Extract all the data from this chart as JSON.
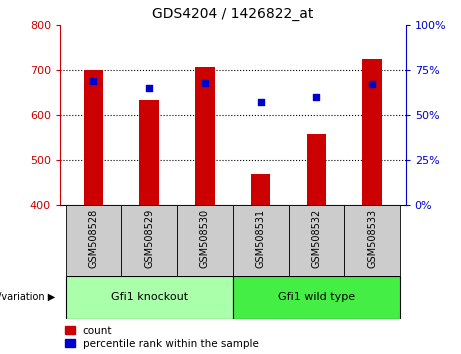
{
  "title": "GDS4204 / 1426822_at",
  "samples": [
    "GSM508528",
    "GSM508529",
    "GSM508530",
    "GSM508531",
    "GSM508532",
    "GSM508533"
  ],
  "count_values": [
    700,
    633,
    706,
    469,
    557,
    724
  ],
  "percentile_values": [
    69,
    65,
    68,
    57,
    60,
    67
  ],
  "count_baseline": 400,
  "count_ylim": [
    400,
    800
  ],
  "count_yticks": [
    400,
    500,
    600,
    700,
    800
  ],
  "percentile_ylim": [
    0,
    100
  ],
  "percentile_yticks": [
    0,
    25,
    50,
    75,
    100
  ],
  "bar_color": "#cc0000",
  "dot_color": "#0000cc",
  "bar_width": 0.35,
  "groups": [
    {
      "label": "Gfi1 knockout",
      "start": 0,
      "end": 3,
      "color": "#aaffaa"
    },
    {
      "label": "Gfi1 wild type",
      "start": 3,
      "end": 6,
      "color": "#44ee44"
    }
  ],
  "group_label": "genotype/variation",
  "legend_count_label": "count",
  "legend_percentile_label": "percentile rank within the sample",
  "background_color": "#ffffff",
  "plot_bg_color": "#ffffff",
  "tick_label_color_left": "#cc0000",
  "tick_label_color_right": "#0000cc",
  "xlabel_area_bg": "#cccccc",
  "grid_yticks": [
    500,
    600,
    700
  ]
}
